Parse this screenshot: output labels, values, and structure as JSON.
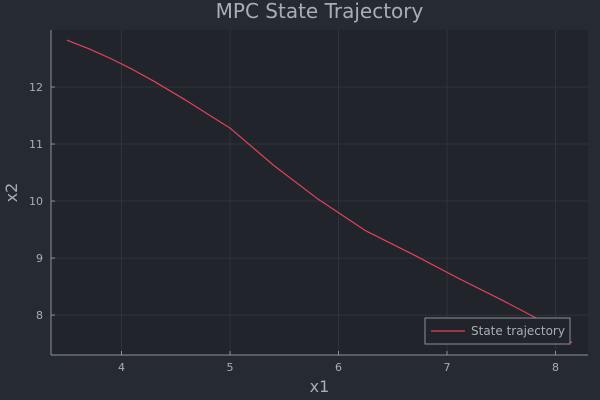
{
  "chart_data": {
    "type": "line",
    "title": "MPC State Trajectory",
    "xlabel": "x1",
    "ylabel": "x2",
    "xlim": [
      3.35,
      8.3
    ],
    "ylim": [
      7.3,
      13.0
    ],
    "xticks": [
      4,
      5,
      6,
      7,
      8
    ],
    "yticks": [
      8,
      9,
      10,
      11,
      12
    ],
    "grid": true,
    "legend_position": "bottom-right",
    "series": [
      {
        "name": "State trajectory",
        "color": "#e0425e",
        "x": [
          3.5,
          3.7,
          3.9,
          4.1,
          4.3,
          4.6,
          5.0,
          5.4,
          5.8,
          6.25,
          6.7,
          7.1,
          7.5,
          7.85,
          8.15
        ],
        "y": [
          12.82,
          12.67,
          12.5,
          12.31,
          12.1,
          11.76,
          11.28,
          10.63,
          10.05,
          9.48,
          9.05,
          8.65,
          8.27,
          7.92,
          7.52
        ]
      }
    ]
  },
  "colors": {
    "background": "#262a31",
    "plot_background": "#21242a",
    "grid": "#30343b",
    "axis": "#8d9199",
    "text": "#a9adb5",
    "legend_border": "#8d9199"
  }
}
